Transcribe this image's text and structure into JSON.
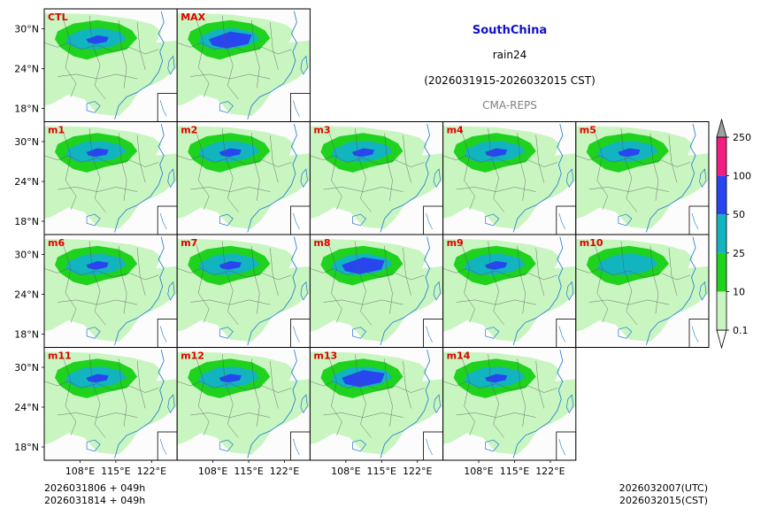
{
  "title": {
    "region": "SouthChina",
    "variable": "rain24",
    "period": "(2026031915-2026032015 CST)",
    "model": "CMA-REPS"
  },
  "footer": {
    "init_utc": "2026031806  +  049h",
    "init_cst": "2026031814  +  049h",
    "valid_utc": "2026032007(UTC)",
    "valid_cst": "2026032015(CST)"
  },
  "colors": {
    "land_light": "#c8f5c0",
    "green": "#1ed21e",
    "cyan": "#12b4c0",
    "blue": "#2846f0",
    "magenta": "#f01e82",
    "coast": "#1e78d2",
    "label_red": "#e00000"
  },
  "chart_data": {
    "type": "heatmap",
    "panels": [
      "CTL",
      "MAX",
      "m1",
      "m2",
      "m3",
      "m4",
      "m5",
      "m6",
      "m7",
      "m8",
      "m9",
      "m10",
      "m11",
      "m12",
      "m13",
      "m14"
    ],
    "panel_intensity": {
      "CTL": 1,
      "MAX": 2,
      "m1": 1,
      "m2": 1,
      "m3": 1,
      "m4": 1,
      "m5": 1,
      "m6": 1,
      "m7": 1,
      "m8": 2,
      "m9": 1,
      "m10": 0,
      "m11": 1,
      "m12": 1,
      "m13": 2,
      "m14": 1
    },
    "xlabel": "",
    "ylabel": "",
    "x_ticks": [
      "108°E",
      "115°E",
      "122°E"
    ],
    "y_ticks": [
      "30°N",
      "24°N",
      "18°N"
    ],
    "xlim": [
      101,
      127
    ],
    "ylim": [
      16,
      33
    ],
    "colorbar": {
      "levels": [
        "0.1",
        "10",
        "25",
        "50",
        "100",
        "250"
      ],
      "colors": [
        "#c8f5c0",
        "#1ed21e",
        "#12b4c0",
        "#2846f0",
        "#f01e82"
      ],
      "extend": "both"
    }
  }
}
